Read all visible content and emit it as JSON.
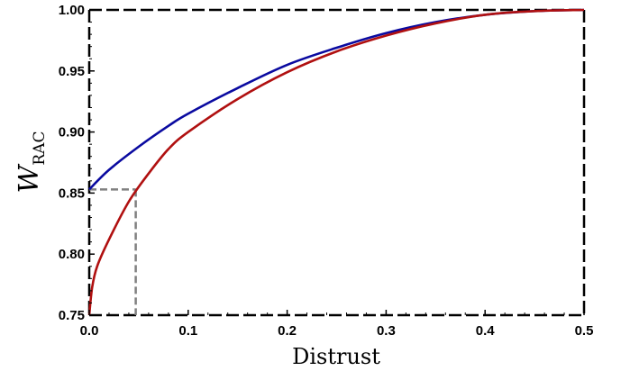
{
  "chart_data": {
    "type": "line",
    "title": "",
    "xlabel": "Distrust",
    "ylabel": {
      "main": "W",
      "sub": "RAC"
    },
    "xlim": [
      0.0,
      0.5
    ],
    "ylim": [
      0.75,
      1.0
    ],
    "x_ticks": [
      0.0,
      0.1,
      0.2,
      0.3,
      0.4,
      0.5
    ],
    "x_tick_labels": [
      "0.0",
      "0.1",
      "0.2",
      "0.3",
      "0.4",
      "0.5"
    ],
    "y_ticks": [
      0.75,
      0.8,
      0.85,
      0.9,
      0.95,
      1.0
    ],
    "y_tick_labels": [
      "0.75",
      "0.80",
      "0.85",
      "0.90",
      "0.95",
      "1.00"
    ],
    "grid": false,
    "frame": "dashed",
    "series": [
      {
        "color": "#0a0aa0",
        "x": [
          0.0,
          0.02,
          0.05,
          0.08,
          0.1,
          0.15,
          0.2,
          0.25,
          0.3,
          0.35,
          0.4,
          0.45,
          0.5
        ],
        "y": [
          0.853,
          0.869,
          0.888,
          0.905,
          0.915,
          0.936,
          0.955,
          0.969,
          0.981,
          0.99,
          0.996,
          0.999,
          1.0
        ]
      },
      {
        "color": "#b01010",
        "x": [
          0.0,
          0.003,
          0.008,
          0.02,
          0.04,
          0.06,
          0.08,
          0.1,
          0.15,
          0.2,
          0.25,
          0.3,
          0.35,
          0.4,
          0.45,
          0.5
        ],
        "y": [
          0.75,
          0.773,
          0.79,
          0.812,
          0.843,
          0.866,
          0.886,
          0.9,
          0.927,
          0.949,
          0.966,
          0.979,
          0.989,
          0.996,
          0.999,
          1.0
        ]
      }
    ],
    "annotations": [
      {
        "type": "dashed-guide",
        "x": 0.047,
        "y": 0.853,
        "color": "#808080"
      }
    ]
  }
}
